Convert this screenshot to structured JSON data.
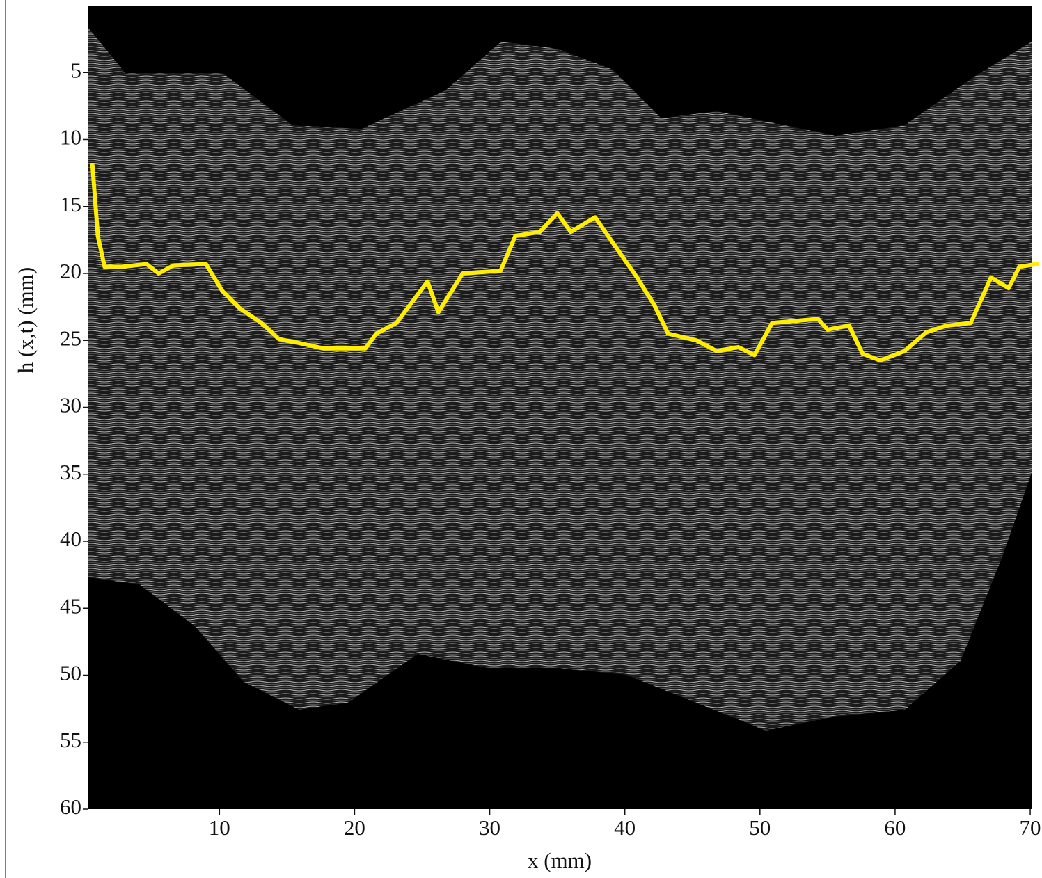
{
  "chart_data": {
    "type": "line",
    "xlabel": "x (mm)",
    "ylabel": "h (x,t) (mm)",
    "xlim": [
      0.3,
      70.1
    ],
    "ylim": [
      0,
      60
    ],
    "y_inverted": true,
    "xticks": [
      10,
      20,
      30,
      40,
      50,
      60,
      70
    ],
    "yticks": [
      5,
      10,
      15,
      20,
      25,
      30,
      35,
      40,
      45,
      50,
      55,
      60
    ],
    "series": [
      {
        "color": "#ffee00",
        "x": [
          0.6,
          1.0,
          1.5,
          2.8,
          4.6,
          5.5,
          6.6,
          9.0,
          10.2,
          11.5,
          13.1,
          14.4,
          15.9,
          17.7,
          20.8,
          21.6,
          23.1,
          25.4,
          26.2,
          28.0,
          30.8,
          31.9,
          33.7,
          35.0,
          36.0,
          37.8,
          39.1,
          40.9,
          42.2,
          43.2,
          45.3,
          46.8,
          48.4,
          49.6,
          50.9,
          54.3,
          55.0,
          56.6,
          57.6,
          58.9,
          60.7,
          62.3,
          63.8,
          65.6,
          67.1,
          68.4,
          69.2,
          70.5
        ],
        "values": [
          11.9,
          17.2,
          19.5,
          19.5,
          19.3,
          20.0,
          19.4,
          19.3,
          21.3,
          22.6,
          23.7,
          24.9,
          25.2,
          25.6,
          25.6,
          24.5,
          23.7,
          20.6,
          22.9,
          20.0,
          19.8,
          17.2,
          16.9,
          15.5,
          16.9,
          15.8,
          17.7,
          20.3,
          22.4,
          24.5,
          25.0,
          25.8,
          25.5,
          26.1,
          23.7,
          23.4,
          24.2,
          23.9,
          26.0,
          26.5,
          25.8,
          24.4,
          23.9,
          23.7,
          20.3,
          21.1,
          19.5,
          19.3
        ]
      }
    ]
  }
}
